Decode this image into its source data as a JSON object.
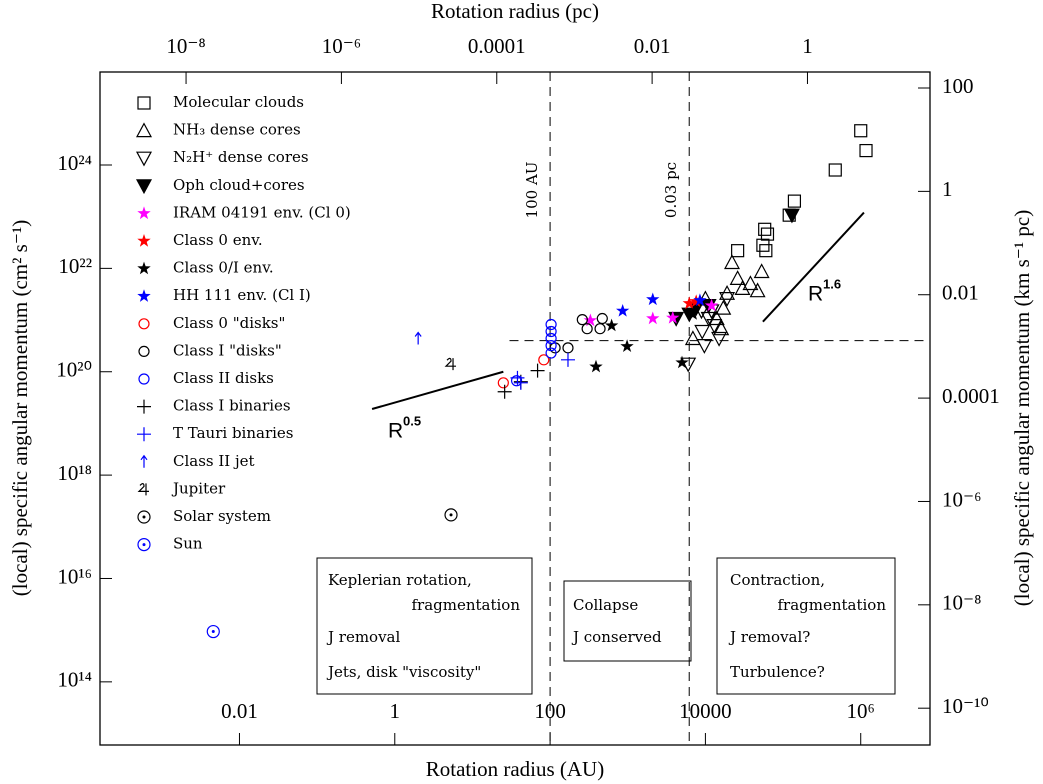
{
  "chart_data": {
    "type": "scatter",
    "xlabel": "Rotation radius (AU)",
    "x2label": "Rotation radius (pc)",
    "ylabel": "(local) specific angular momentum (cm² s⁻¹)",
    "y2label": "(local) specific angular momentum (km s⁻¹ pc)",
    "xscale": "log",
    "yscale": "log",
    "xlim": [
      0.00016,
      7800000
    ],
    "x2lim": [
      7.8e-10,
      37.8
    ],
    "ylim": [
      6000000000000.0,
      6.3e+25
    ],
    "y2lim": [
      1.94e-11,
      204
    ],
    "xticks": [
      0.01,
      1,
      100,
      10000,
      {
        "value": 1000000,
        "label": "10⁶"
      }
    ],
    "x2ticks": [
      {
        "value": 1e-08,
        "label": "10⁻⁸"
      },
      {
        "value": 1e-06,
        "label": "10⁻⁶"
      },
      0.0001,
      0.01,
      1
    ],
    "yticks": [
      {
        "value": 100000000000000.0,
        "label": "10¹⁴"
      },
      {
        "value": 1e+16,
        "label": "10¹⁶"
      },
      {
        "value": 1e+18,
        "label": "10¹⁸"
      },
      {
        "value": 1e+20,
        "label": "10²⁰"
      },
      {
        "value": 1e+22,
        "label": "10²²"
      },
      {
        "value": 1e+24,
        "label": "10²⁴"
      }
    ],
    "y2ticks": [
      {
        "value": 1e-10,
        "label": "10⁻¹⁰"
      },
      {
        "value": 1e-08,
        "label": "10⁻⁸"
      },
      {
        "value": 1e-06,
        "label": "10⁻⁶"
      },
      0.0001,
      0.01,
      1,
      100
    ],
    "legend": "upper left",
    "series": [
      {
        "name": "Molecular clouds",
        "color": "#000000",
        "marker": "square",
        "x": [
          1000000,
          1170000,
          470000,
          140000,
          120000,
          58000,
          63000,
          55000,
          60000,
          26000
        ],
        "values": [
          4.6e+24,
          1.9e+24,
          8e+23,
          2e+23,
          1.07e+23,
          5.7e+22,
          4.6e+22,
          2.8e+22,
          2.2e+22,
          2.2e+22
        ]
      },
      {
        "name": "NH₃ dense cores",
        "color": "#000000",
        "marker": "triangle-up",
        "x": [
          22000,
          53000,
          26000,
          30000,
          38000,
          19000,
          47000,
          17000,
          14000,
          16000,
          10000,
          6900
        ],
        "values": [
          1.3e+22,
          8.7e+21,
          6.4e+21,
          4.1e+21,
          5.1e+21,
          3.3e+21,
          3.7e+21,
          1.7e+21,
          1.07e+21,
          6.8e+20,
          2.6e+21,
          4.4e+20
        ]
      },
      {
        "name": "N₂H⁺ dense cores",
        "color": "#000000",
        "marker": "triangle-down",
        "x": [
          11000,
          13000,
          9100,
          15000,
          9700,
          6000,
          12000,
          19000,
          8900
        ],
        "values": [
          1.07e+21,
          7.8e+20,
          6e+20,
          4.4e+20,
          3.2e+20,
          1.4e+20,
          1.5e+21,
          2.6e+21,
          1.5e+21
        ]
      },
      {
        "name": "Oph cloud+cores",
        "color": "#000000",
        "marker": "triangle-down-filled",
        "x": [
          4200,
          6200,
          7600,
          130000,
          11000
        ],
        "values": [
          1.07e+21,
          1.3e+21,
          1.7e+21,
          1.07e+23,
          1.9e+21
        ]
      },
      {
        "name": "IRAM 04191 env. (Cl 0)",
        "color": "#ff00ff",
        "marker": "star",
        "x": [
          330,
          2100,
          3800,
          12000
        ],
        "values": [
          9.8e+20,
          1.07e+21,
          1.1e+21,
          1.9e+21
        ]
      },
      {
        "name": "Class 0 env.",
        "color": "#ff0000",
        "marker": "star",
        "x": [
          6200,
          7600
        ],
        "values": [
          2.1e+21,
          2.3e+21
        ]
      },
      {
        "name": "Class 0/I env.",
        "color": "#000000",
        "marker": "star",
        "x": [
          620,
          980,
          390,
          5000,
          6900
        ],
        "values": [
          7.8e+20,
          3.1e+20,
          1.25e+20,
          1.5e+20,
          1.3e+21
        ]
      },
      {
        "name": "HH 111 env. (Cl I)",
        "color": "#0000ff",
        "marker": "star",
        "x": [
          860,
          2100,
          8500
        ],
        "values": [
          1.5e+21,
          2.5e+21,
          2.4e+21
        ]
      },
      {
        "name": "Class 0 \"disks\"",
        "color": "#ff0000",
        "marker": "circle",
        "x": [
          25,
          83
        ],
        "values": [
          6.1e+19,
          1.7e+20
        ]
      },
      {
        "name": "Class I \"disks\"",
        "color": "#000000",
        "marker": "circle",
        "x": [
          260,
          300,
          440,
          470,
          170,
          116
        ],
        "values": [
          1.02e+21,
          6.8e+20,
          6.8e+20,
          1.07e+21,
          2.9e+20,
          2.9e+20
        ]
      },
      {
        "name": "Class II disks",
        "color": "#0000ff",
        "marker": "circle",
        "x": [
          103,
          103,
          103,
          103,
          103,
          37
        ],
        "values": [
          8.2e+20,
          6e+20,
          4.4e+20,
          3.2e+20,
          2.3e+20,
          6.7e+19
        ]
      },
      {
        "name": "Class I binaries",
        "color": "#000000",
        "marker": "plus",
        "x": [
          26,
          69,
          42
        ],
        "values": [
          4.1e+19,
          1.05e+20,
          6.4e+19
        ]
      },
      {
        "name": "T Tauri binaries",
        "color": "#0000ff",
        "marker": "plus",
        "x": [
          170,
          38,
          42
        ],
        "values": [
          1.7e+20,
          7.6e+19,
          6.1e+19
        ]
      },
      {
        "name": "Class II jet",
        "color": "#0000ff",
        "marker": "arrow",
        "x": [
          2.0
        ],
        "values": [
          4.4e+20
        ]
      },
      {
        "name": "Jupiter",
        "color": "#000000",
        "marker": "jupiter",
        "x": [
          5.3
        ],
        "values": [
          1.4e+20
        ]
      },
      {
        "name": "Solar system",
        "color": "#000000",
        "marker": "sun",
        "x": [
          5.3
        ],
        "values": [
          1.7e+17
        ]
      },
      {
        "name": "Sun",
        "color": "#0000ff",
        "marker": "sun",
        "x": [
          0.0046
        ],
        "values": [
          940000000000000.0
        ]
      }
    ],
    "fit_lines": [
      {
        "label": "R",
        "exponent": "0.5",
        "x": [
          0.51,
          25
        ],
        "y": [
          1.9e+19,
          1e+20
        ]
      },
      {
        "label": "R",
        "exponent": "1.6",
        "x": [
          55000,
          1100000
        ],
        "y": [
          9.3e+20,
          1.2e+23
        ]
      }
    ],
    "reference_lines": {
      "vertical": [
        {
          "x": 100,
          "label": "100 AU"
        },
        {
          "x": 6188,
          "label": "0.03 pc"
        }
      ],
      "horizontal": [
        {
          "y": 4e+20,
          "xmin": 30
        }
      ]
    },
    "boxes": [
      {
        "lines": [
          {
            "text": "Keplerian rotation,"
          },
          {
            "text": "fragmentation"
          },
          {
            "text": "J removal",
            "color": "#ff0000"
          },
          {
            "text": "Jets, disk \"viscosity\""
          }
        ]
      },
      {
        "lines": [
          {
            "text": "Collapse"
          },
          {
            "text": "J conserved",
            "color": "#ff0000"
          }
        ]
      },
      {
        "lines": [
          {
            "text": "Contraction,"
          },
          {
            "text": "fragmentation"
          },
          {
            "text": "J removal?",
            "color": "#ff0000"
          },
          {
            "text": "Turbulence?"
          }
        ]
      }
    ]
  }
}
